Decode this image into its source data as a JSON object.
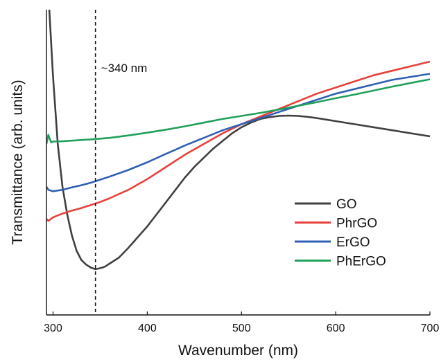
{
  "chart_data": {
    "type": "line",
    "xlabel": "Wavenumber (nm)",
    "ylabel": "Transmittance (arb. units)",
    "xlim": [
      293,
      700
    ],
    "ylim": [
      0,
      100
    ],
    "xticks": [
      300,
      400,
      500,
      600,
      700
    ],
    "yticks": [],
    "grid": false,
    "legend_position": "lower-right",
    "annotation": {
      "text": "~340 nm",
      "x": 345,
      "style": "dashed-vertical-line"
    },
    "series": [
      {
        "name": "GO",
        "color": "#404040",
        "x": [
          296,
          300,
          305,
          310,
          315,
          320,
          325,
          330,
          335,
          340,
          345,
          350,
          355,
          360,
          370,
          380,
          390,
          400,
          410,
          420,
          430,
          440,
          450,
          460,
          470,
          480,
          490,
          500,
          510,
          520,
          530,
          540,
          550,
          560,
          570,
          580,
          590,
          600,
          620,
          640,
          660,
          680,
          700
        ],
        "y": [
          100,
          78,
          56,
          42,
          33,
          26,
          21,
          18,
          16.5,
          15.5,
          15,
          15.3,
          15.8,
          16.8,
          18.8,
          22,
          25.5,
          29,
          33,
          37,
          41,
          45,
          48.5,
          51.5,
          54.5,
          57,
          59.5,
          61.5,
          63,
          64.2,
          64.8,
          65.2,
          65.3,
          65.2,
          64.9,
          64.5,
          64,
          63.5,
          62.5,
          61.5,
          60.5,
          59.5,
          58.5
        ]
      },
      {
        "name": "PhrGO",
        "color": "#e8403a",
        "x": [
          293,
          295,
          300,
          310,
          320,
          330,
          340,
          350,
          360,
          380,
          400,
          420,
          440,
          460,
          480,
          500,
          520,
          540,
          560,
          580,
          600,
          620,
          640,
          660,
          680,
          700
        ],
        "y": [
          31.5,
          30.8,
          32,
          33.2,
          34.2,
          35,
          36,
          37,
          38.2,
          41,
          44.5,
          48.5,
          52.5,
          56,
          59.5,
          62.5,
          65,
          67.5,
          70,
          72.5,
          74.5,
          76.5,
          78.5,
          80,
          81.5,
          83
        ]
      },
      {
        "name": "ErGO",
        "color": "#2f5fb3",
        "x": [
          293,
          295,
          300,
          310,
          320,
          330,
          340,
          350,
          360,
          380,
          400,
          420,
          440,
          460,
          480,
          500,
          520,
          540,
          560,
          580,
          600,
          620,
          640,
          660,
          680,
          700
        ],
        "y": [
          42,
          41,
          40.5,
          41,
          41.8,
          42.5,
          43.3,
          44.3,
          45.3,
          47.5,
          50,
          52.8,
          55.5,
          58,
          60.5,
          62.5,
          64.5,
          66.5,
          68.5,
          70.5,
          72.5,
          74,
          75.5,
          77,
          78,
          79
        ]
      },
      {
        "name": "PhErGO",
        "color": "#21a05a",
        "x": [
          293,
          295,
          298,
          300,
          310,
          320,
          340,
          360,
          380,
          400,
          420,
          440,
          460,
          480,
          500,
          520,
          540,
          560,
          580,
          600,
          620,
          640,
          660,
          680,
          700
        ],
        "y": [
          56,
          59,
          56.5,
          56.8,
          56.9,
          57.1,
          57.5,
          58,
          58.8,
          59.7,
          60.7,
          61.8,
          63,
          64.2,
          65.2,
          66.2,
          67.3,
          68.5,
          69.7,
          71,
          72.2,
          73.5,
          74.8,
          76,
          77.2
        ]
      }
    ]
  }
}
